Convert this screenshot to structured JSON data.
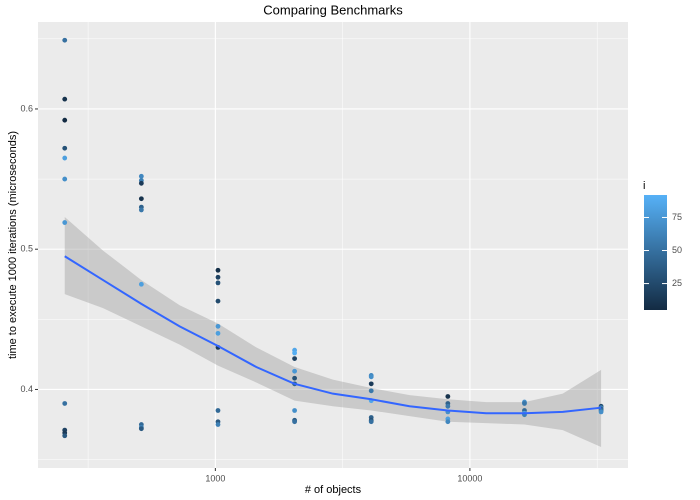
{
  "chart_data": {
    "type": "scatter",
    "title": "Comparing Benchmarks",
    "x_label": "# of objects",
    "y_label": "time to execute 1000 iterations (microseconds)",
    "xlog": true,
    "xlim": [
      201,
      41800
    ],
    "xticks": [
      1000,
      10000
    ],
    "ylim": [
      0.344,
      0.662
    ],
    "yticks": [
      0.4,
      0.5,
      0.6
    ],
    "grid": true,
    "points": {
      "x": [
        256,
        256,
        256,
        256,
        256,
        256,
        256,
        256,
        256,
        256,
        256,
        512,
        512,
        512,
        512,
        512,
        512,
        512,
        512,
        512,
        512,
        1024,
        1024,
        1024,
        1024,
        1024,
        1024,
        1024,
        1024,
        1024,
        1024,
        2048,
        2048,
        2048,
        2048,
        2048,
        2048,
        2048,
        2048,
        2048,
        4096,
        4096,
        4096,
        4096,
        4096,
        4096,
        4096,
        4096,
        8192,
        8192,
        8192,
        8192,
        8192,
        8192,
        16384,
        16384,
        16384,
        16384,
        16384,
        32768,
        32768,
        32768,
        32768,
        32768
      ],
      "values": [
        0.649,
        0.607,
        0.592,
        0.572,
        0.565,
        0.55,
        0.519,
        0.39,
        0.371,
        0.369,
        0.367,
        0.552,
        0.549,
        0.547,
        0.536,
        0.53,
        0.528,
        0.475,
        0.375,
        0.373,
        0.372,
        0.485,
        0.48,
        0.476,
        0.463,
        0.445,
        0.44,
        0.43,
        0.385,
        0.377,
        0.375,
        0.428,
        0.426,
        0.422,
        0.413,
        0.408,
        0.404,
        0.385,
        0.378,
        0.377,
        0.41,
        0.409,
        0.404,
        0.399,
        0.392,
        0.38,
        0.378,
        0.377,
        0.395,
        0.39,
        0.388,
        0.384,
        0.379,
        0.377,
        0.391,
        0.39,
        0.385,
        0.383,
        0.382,
        0.388,
        0.387,
        0.386,
        0.385,
        0.384
      ],
      "color_values": [
        50,
        10,
        5,
        30,
        80,
        70,
        75,
        50,
        20,
        15,
        35,
        65,
        60,
        15,
        10,
        40,
        55,
        80,
        45,
        60,
        35,
        8,
        20,
        30,
        25,
        75,
        80,
        15,
        45,
        35,
        60,
        85,
        90,
        20,
        75,
        30,
        40,
        70,
        35,
        50,
        65,
        70,
        15,
        55,
        85,
        40,
        30,
        50,
        10,
        40,
        55,
        70,
        80,
        65,
        70,
        55,
        45,
        80,
        60,
        25,
        60,
        40,
        50,
        70
      ]
    },
    "smooth": {
      "color": "#3366FF",
      "fill": "#999999",
      "x": [
        256,
        362,
        512,
        724,
        1024,
        1448,
        2048,
        2896,
        4096,
        5793,
        8192,
        11585,
        16384,
        23170,
        32768
      ],
      "values": [
        0.495,
        0.478,
        0.461,
        0.445,
        0.431,
        0.416,
        0.404,
        0.397,
        0.393,
        0.388,
        0.385,
        0.383,
        0.383,
        0.384,
        0.387
      ],
      "lower": [
        0.468,
        0.458,
        0.445,
        0.432,
        0.417,
        0.405,
        0.392,
        0.388,
        0.385,
        0.381,
        0.377,
        0.376,
        0.375,
        0.371,
        0.359
      ],
      "upper": [
        0.523,
        0.499,
        0.478,
        0.46,
        0.447,
        0.43,
        0.416,
        0.407,
        0.401,
        0.396,
        0.393,
        0.391,
        0.391,
        0.397,
        0.414
      ]
    },
    "colorbar": {
      "title": "i",
      "lim": [
        5,
        92
      ],
      "ticks": [
        25,
        50,
        75
      ],
      "low": "#132B43",
      "high": "#56B1F7"
    }
  }
}
